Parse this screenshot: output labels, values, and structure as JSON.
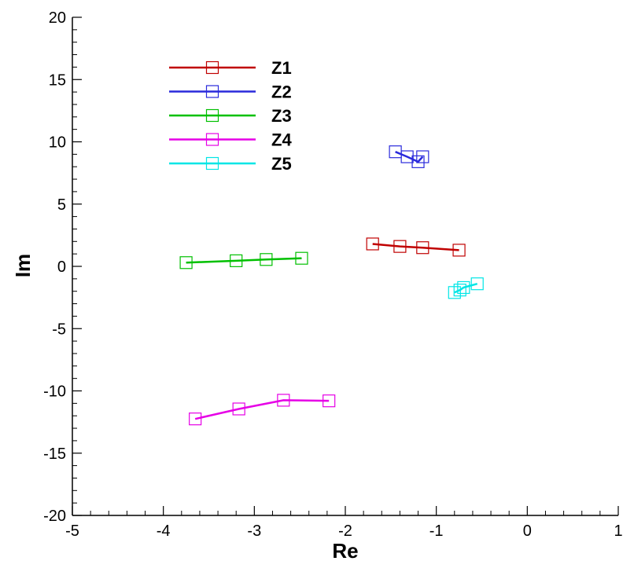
{
  "chart_data": {
    "type": "line",
    "xlabel": "Re",
    "ylabel": "Im",
    "xlim": [
      -5,
      1
    ],
    "ylim": [
      -20,
      20
    ],
    "x_ticks": [
      -5,
      -4,
      -3,
      -2,
      -1,
      0,
      1
    ],
    "y_ticks": [
      -20,
      -15,
      -10,
      -5,
      0,
      5,
      10,
      15,
      20
    ],
    "grid": false,
    "legend_position": "top-left",
    "marker": "square-open",
    "series": [
      {
        "name": "Z1",
        "color": "#c00000",
        "points": [
          [
            -1.7,
            1.8
          ],
          [
            -1.4,
            1.6
          ],
          [
            -1.15,
            1.5
          ],
          [
            -0.75,
            1.3
          ]
        ]
      },
      {
        "name": "Z2",
        "color": "#2a2adc",
        "points": [
          [
            -1.45,
            9.2
          ],
          [
            -1.32,
            8.8
          ],
          [
            -1.2,
            8.4
          ],
          [
            -1.15,
            8.8
          ]
        ]
      },
      {
        "name": "Z3",
        "color": "#00c000",
        "points": [
          [
            -3.75,
            0.3
          ],
          [
            -3.2,
            0.45
          ],
          [
            -2.87,
            0.55
          ],
          [
            -2.48,
            0.65
          ]
        ]
      },
      {
        "name": "Z4",
        "color": "#e600e6",
        "points": [
          [
            -3.65,
            -12.25
          ],
          [
            -3.17,
            -11.45
          ],
          [
            -2.68,
            -10.75
          ],
          [
            -2.18,
            -10.8
          ]
        ]
      },
      {
        "name": "Z5",
        "color": "#00e6e6",
        "points": [
          [
            -0.8,
            -2.1
          ],
          [
            -0.74,
            -1.9
          ],
          [
            -0.7,
            -1.7
          ],
          [
            -0.55,
            -1.4
          ]
        ]
      }
    ]
  }
}
